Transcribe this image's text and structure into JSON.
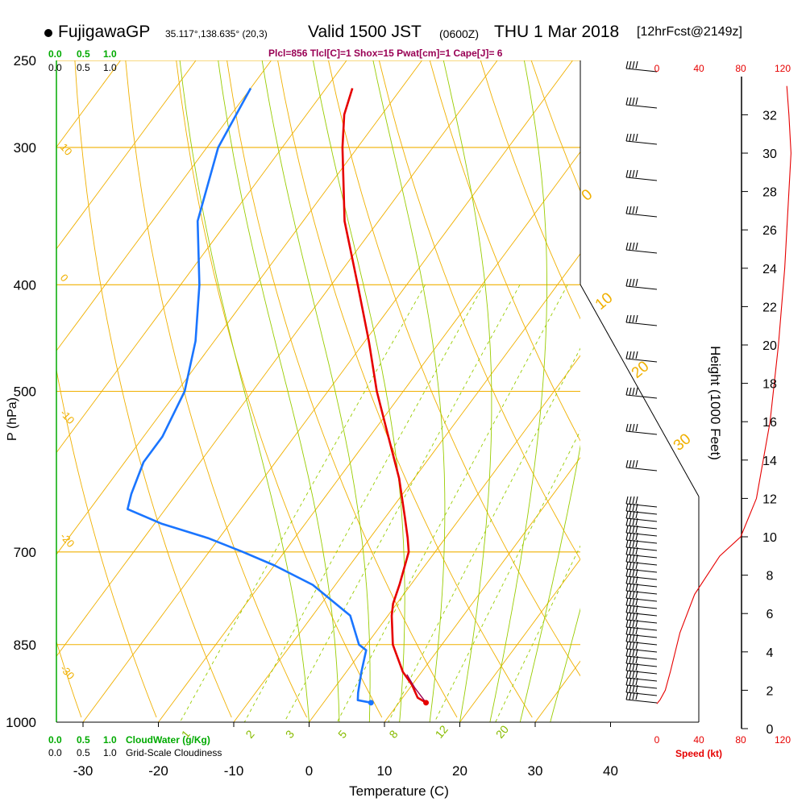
{
  "header": {
    "station": "FujigawaGP",
    "coords": "35.117°,138.635° (20,3)",
    "valid_time": "Valid 1500 JST",
    "zulu": "(0600Z)",
    "valid_date": "THU 1 Mar 2018",
    "forecast": "[12hrFcst@2149z]",
    "indices": "Plcl=856 Tlcl[C]=1 Shox=15 Pwat[cm]=1 Cape[J]= 6"
  },
  "chart_data": {
    "type": "skew-t",
    "xlabel": "Temperature (C)",
    "ylabel": "P (hPa)",
    "x_ticks": [
      "-30",
      "-20",
      "-10",
      "0",
      "10",
      "20",
      "30",
      "40"
    ],
    "x_tick_values": [
      -30,
      -20,
      -10,
      0,
      10,
      20,
      30,
      40
    ],
    "p_ticks": [
      "250",
      "300",
      "400",
      "500",
      "700",
      "850",
      "1000"
    ],
    "p_tick_values": [
      250,
      300,
      400,
      500,
      700,
      850,
      1000
    ],
    "height_axis": {
      "label": "Height (1000 Feet)",
      "ticks": [
        "0",
        "2",
        "4",
        "6",
        "8",
        "10",
        "12",
        "14",
        "16",
        "18",
        "20",
        "22",
        "24",
        "26",
        "28",
        "30",
        "32"
      ]
    },
    "dry_adiabat_labels": [
      "10",
      "0",
      "-10",
      "-20",
      "-30"
    ],
    "moist_adiabat_labels": [
      "0",
      "10",
      "20",
      "30"
    ],
    "mixing_ratio_labels": [
      "1",
      "2",
      "3",
      "5",
      "8",
      "12",
      "20"
    ],
    "cloud_scale": {
      "top_water": [
        "0.0",
        "0.5",
        "1.0"
      ],
      "top_cover": [
        "0.0",
        "0.5",
        "1.0"
      ],
      "bottom_water": [
        "0.0",
        "0.5",
        "1.0"
      ],
      "bottom_cover": [
        "0.0",
        "0.5",
        "1.0"
      ],
      "water_label": "CloudWater (g/Kg)",
      "cover_label": "Grid-Scale Cloudiness"
    },
    "speed_axis": {
      "label": "Speed (kt)",
      "ticks": [
        "0",
        "40",
        "80",
        "120"
      ]
    },
    "temperature_profile": [
      {
        "p": 960,
        "t": 13.6
      },
      {
        "p": 950,
        "t": 12.0
      },
      {
        "p": 925,
        "t": 10.0
      },
      {
        "p": 900,
        "t": 7.5
      },
      {
        "p": 850,
        "t": 3.5
      },
      {
        "p": 800,
        "t": 0.5
      },
      {
        "p": 780,
        "t": -0.5
      },
      {
        "p": 750,
        "t": -1.5
      },
      {
        "p": 700,
        "t": -3.5
      },
      {
        "p": 680,
        "t": -5.0
      },
      {
        "p": 650,
        "t": -7.5
      },
      {
        "p": 600,
        "t": -12.0
      },
      {
        "p": 550,
        "t": -17.5
      },
      {
        "p": 500,
        "t": -23.5
      },
      {
        "p": 450,
        "t": -29.5
      },
      {
        "p": 400,
        "t": -36.5
      },
      {
        "p": 350,
        "t": -44.5
      },
      {
        "p": 300,
        "t": -52.0
      },
      {
        "p": 280,
        "t": -55.0
      },
      {
        "p": 265,
        "t": -56.5
      }
    ],
    "dewpoint_profile": [
      {
        "p": 960,
        "td": 6.3
      },
      {
        "p": 955,
        "td": 4.3
      },
      {
        "p": 940,
        "td": 3.6
      },
      {
        "p": 900,
        "td": 2.0
      },
      {
        "p": 860,
        "td": 0.5
      },
      {
        "p": 850,
        "td": -1.0
      },
      {
        "p": 800,
        "td": -5.0
      },
      {
        "p": 750,
        "td": -13.0
      },
      {
        "p": 720,
        "td": -20.0
      },
      {
        "p": 700,
        "td": -25.5
      },
      {
        "p": 680,
        "td": -31.5
      },
      {
        "p": 660,
        "td": -39.0
      },
      {
        "p": 640,
        "td": -45.0
      },
      {
        "p": 620,
        "td": -46.0
      },
      {
        "p": 580,
        "td": -47.5
      },
      {
        "p": 550,
        "td": -47.5
      },
      {
        "p": 500,
        "td": -49.0
      },
      {
        "p": 450,
        "td": -52.5
      },
      {
        "p": 400,
        "td": -57.5
      },
      {
        "p": 350,
        "td": -64.0
      },
      {
        "p": 300,
        "td": -68.5
      },
      {
        "p": 265,
        "td": -70.0
      }
    ],
    "parcel_path": [
      {
        "p": 960,
        "t": 13.6
      },
      {
        "p": 930,
        "t": 10.6
      },
      {
        "p": 905,
        "t": 8.3
      }
    ],
    "surface": {
      "p": 960,
      "t": 13.6,
      "td": 6.3
    },
    "wind_speed_profile": [
      {
        "height_kft": 1.3,
        "kt": 0
      },
      {
        "height_kft": 1.5,
        "kt": 3
      },
      {
        "height_kft": 2.0,
        "kt": 8
      },
      {
        "height_kft": 3.0,
        "kt": 13
      },
      {
        "height_kft": 5.0,
        "kt": 22
      },
      {
        "height_kft": 7.0,
        "kt": 36
      },
      {
        "height_kft": 9.0,
        "kt": 60
      },
      {
        "height_kft": 10.0,
        "kt": 80
      },
      {
        "height_kft": 12.0,
        "kt": 95
      },
      {
        "height_kft": 16.0,
        "kt": 108
      },
      {
        "height_kft": 20.0,
        "kt": 116
      },
      {
        "height_kft": 24.0,
        "kt": 122
      },
      {
        "height_kft": 28.0,
        "kt": 126
      },
      {
        "height_kft": 30.0,
        "kt": 128
      },
      {
        "height_kft": 32.0,
        "kt": 126
      },
      {
        "height_kft": 33.5,
        "kt": 124
      }
    ]
  }
}
